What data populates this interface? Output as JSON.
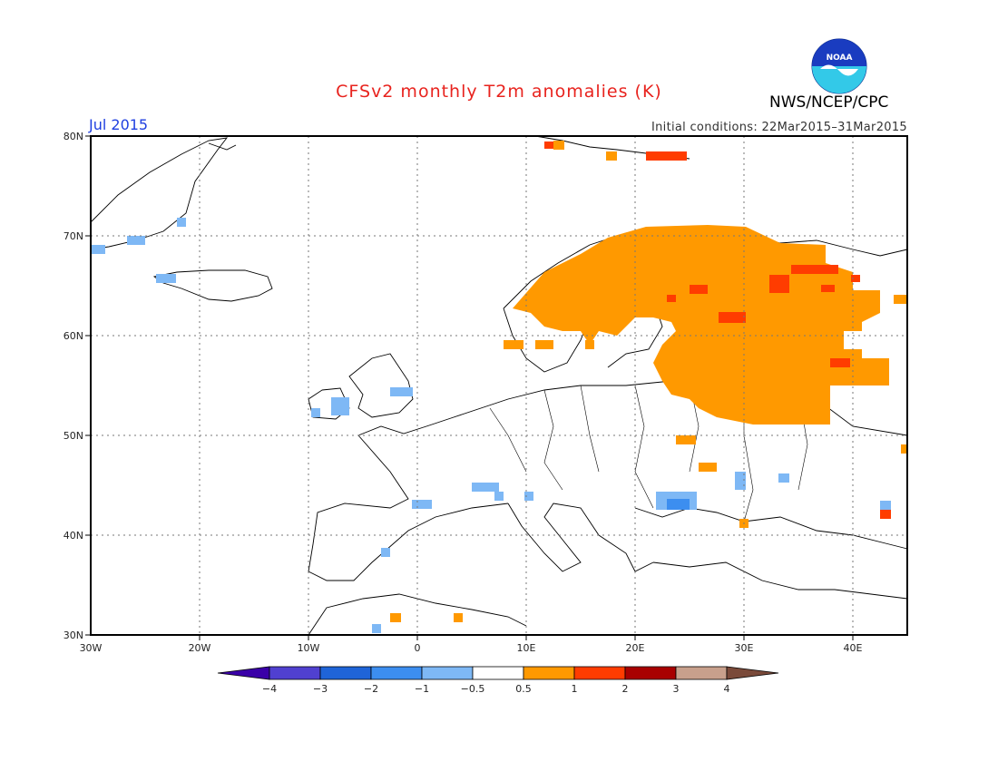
{
  "header": {
    "title": "CFSv2 monthly T2m anomalies (K)",
    "month": "Jul 2015",
    "initial_conditions": "Initial conditions: 22Mar2015–31Mar2015",
    "agency": "NWS/NCEP/CPC",
    "logo_text": "NOAA"
  },
  "map": {
    "region": "Europe",
    "lon_range": [
      -30,
      45
    ],
    "lat_range": [
      30,
      80
    ],
    "lon_labels": [
      "30W",
      "20W",
      "10W",
      "0",
      "10E",
      "20E",
      "30E",
      "40E"
    ],
    "lat_labels": [
      "80N",
      "70N",
      "60N",
      "50N",
      "40N",
      "30N"
    ],
    "gridlines": true
  },
  "colorbar": {
    "ticks": [
      "−4",
      "−3",
      "−2",
      "−1",
      "−0.5",
      "0.5",
      "1",
      "2",
      "3",
      "4"
    ],
    "colors": [
      "#3a00a8",
      "#5040d0",
      "#1f64d8",
      "#3c8ef0",
      "#7eb8f5",
      "#ffffff",
      "#ff9900",
      "#ff3c00",
      "#a80000",
      "#c8a08c",
      "#7a4a3a"
    ]
  },
  "chart_data": {
    "type": "heatmap",
    "title": "CFSv2 monthly T2m anomalies (K)",
    "units": "K",
    "anomaly_regions": [
      {
        "name": "Fennoscandia and NW Russia",
        "anomaly_bin": "0.5 to 1",
        "color": "#ff9900"
      },
      {
        "name": "Western Russia",
        "anomaly_bin": "0.5 to 1",
        "color": "#ff9900"
      },
      {
        "name": "Kola / NW Russia patches",
        "anomaly_bin": "1 to 2",
        "color": "#ff3c00"
      },
      {
        "name": "Svalbard",
        "anomaly_bin": "1 to 2",
        "color": "#ff3c00"
      },
      {
        "name": "Greenland coast",
        "anomaly_bin": "-1 to -0.5",
        "color": "#7eb8f5"
      },
      {
        "name": "Ireland and Britain",
        "anomaly_bin": "-1 to -0.5",
        "color": "#7eb8f5"
      },
      {
        "name": "Balkans / Romania",
        "anomaly_bin": "-1 to -0.5",
        "color": "#7eb8f5"
      },
      {
        "name": "Southern France / Italy",
        "anomaly_bin": "-1 to -0.5",
        "color": "#7eb8f5"
      }
    ]
  }
}
